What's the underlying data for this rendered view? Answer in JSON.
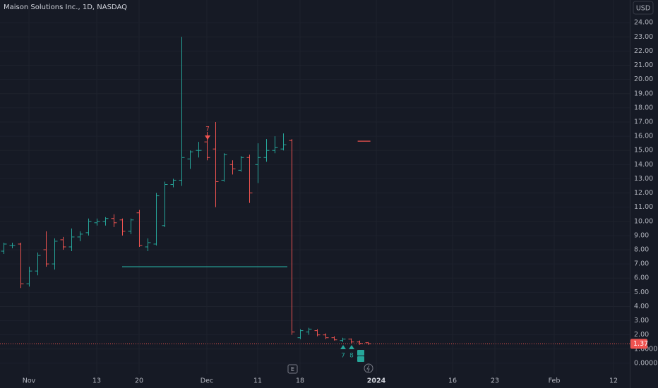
{
  "chart_data": {
    "type": "ohlc",
    "title": "Maison Solutions Inc., 1D, NASDAQ",
    "currency": "USD",
    "up_color": "#26a69a",
    "down_color": "#ef5350",
    "grid": true,
    "categories": [
      null,
      null,
      null,
      "Nov",
      null,
      null,
      null,
      null,
      null,
      null,
      null,
      "13",
      null,
      null,
      null,
      null,
      "20",
      null,
      null,
      null,
      null,
      null,
      null,
      null,
      "Dec",
      null,
      null,
      null,
      null,
      null,
      "11",
      null,
      null,
      null,
      null,
      "18",
      null,
      null,
      null,
      null,
      null,
      null,
      null,
      null,
      "2024",
      null,
      null,
      null,
      null,
      null,
      null,
      null,
      null,
      "16",
      null,
      null,
      null,
      null,
      "23",
      null,
      null,
      null,
      null,
      null,
      null,
      "Feb",
      null,
      null,
      null,
      null,
      null,
      null,
      "12"
    ],
    "open": [
      7.9,
      8.3,
      8.4,
      5.6,
      6.5,
      8.0,
      7.0,
      8.7,
      8.2,
      8.9,
      9.2,
      9.9,
      10.0,
      10.2,
      10.1,
      9.3,
      10.6,
      8.2,
      8.4,
      9.7,
      12.6,
      12.9,
      14.4,
      15.0,
      15.6,
      15.1,
      12.9,
      14.0,
      13.6,
      14.5,
      14.0,
      14.5,
      15.0,
      15.1,
      15.7,
      1.8,
      2.2,
      2.3,
      2.0,
      1.8,
      1.6,
      1.7,
      1.5,
      1.45,
      null,
      null,
      null,
      null,
      null,
      null,
      null,
      null,
      null,
      null,
      null,
      null,
      null,
      null,
      null,
      null,
      null,
      null,
      null,
      null,
      null,
      null,
      null,
      null,
      null,
      null,
      null,
      null,
      null
    ],
    "high": [
      8.5,
      8.5,
      8.5,
      6.8,
      7.8,
      9.3,
      8.8,
      8.9,
      9.5,
      9.3,
      10.2,
      10.2,
      10.3,
      10.5,
      10.2,
      10.2,
      10.8,
      8.8,
      12.0,
      12.8,
      13.0,
      23.0,
      15.0,
      15.6,
      16.3,
      17.0,
      14.8,
      14.3,
      14.6,
      14.7,
      15.5,
      15.8,
      16.0,
      16.2,
      15.8,
      2.4,
      2.5,
      2.4,
      2.1,
      1.9,
      1.8,
      1.75,
      1.6,
      1.5,
      null,
      null,
      null,
      null,
      null,
      null,
      null,
      null,
      null,
      null,
      null,
      null,
      null,
      null,
      null,
      null,
      null,
      null,
      null,
      null,
      null,
      null,
      null,
      null,
      null,
      null,
      null,
      null,
      null
    ],
    "low": [
      7.7,
      8.1,
      5.3,
      5.4,
      6.2,
      6.8,
      6.6,
      8.0,
      7.9,
      8.6,
      9.0,
      9.7,
      9.7,
      9.6,
      9.0,
      9.1,
      8.2,
      7.9,
      8.3,
      9.6,
      12.4,
      12.5,
      13.7,
      14.5,
      14.3,
      11.0,
      12.8,
      13.3,
      13.5,
      11.3,
      12.7,
      14.2,
      14.8,
      15.0,
      2.0,
      1.7,
      2.0,
      1.9,
      1.7,
      1.6,
      1.5,
      1.4,
      1.3,
      1.3,
      null,
      null,
      null,
      null,
      null,
      null,
      null,
      null,
      null,
      null,
      null,
      null,
      null,
      null,
      null,
      null,
      null,
      null,
      null,
      null,
      null,
      null,
      null,
      null,
      null,
      null,
      null,
      null,
      null
    ],
    "close": [
      8.4,
      8.3,
      5.6,
      6.5,
      7.6,
      7.0,
      8.6,
      8.2,
      8.9,
      9.1,
      10.0,
      10.0,
      10.2,
      9.9,
      9.3,
      10.1,
      8.3,
      8.5,
      11.8,
      12.6,
      12.9,
      14.5,
      14.9,
      15.0,
      14.5,
      12.8,
      14.7,
      13.7,
      14.5,
      12.0,
      14.5,
      15.0,
      15.2,
      15.4,
      2.2,
      2.3,
      2.4,
      2.0,
      1.8,
      1.65,
      1.7,
      1.5,
      1.4,
      1.37,
      null,
      null,
      null,
      null,
      null,
      null,
      null,
      null,
      null,
      null,
      null,
      null,
      null,
      null,
      null,
      null,
      null,
      null,
      null,
      null,
      null,
      null,
      null,
      null,
      null,
      null,
      null,
      null,
      null
    ],
    "last_price": 1.37,
    "horizontal_lines": [
      {
        "value": 6.8,
        "color": "#26a69a"
      },
      {
        "value": 15.65,
        "color": "#ef5350"
      }
    ],
    "markers": [
      {
        "label": "7",
        "color": "#ef5350"
      },
      {
        "label": "7",
        "color": "#26a69a"
      },
      {
        "label": "8",
        "color": "#26a69a"
      }
    ],
    "ylim": [
      -0.75,
      25.6
    ],
    "yticks": [
      {
        "value": 0,
        "label": "0.0000"
      },
      {
        "value": 1,
        "label": "1.0000"
      },
      {
        "value": 2,
        "label": "2.00"
      },
      {
        "value": 3,
        "label": "3.00"
      },
      {
        "value": 4,
        "label": "4.00"
      },
      {
        "value": 5,
        "label": "5.00"
      },
      {
        "value": 6,
        "label": "6.00"
      },
      {
        "value": 7,
        "label": "7.00"
      },
      {
        "value": 8,
        "label": "8.00"
      },
      {
        "value": 9,
        "label": "9.00"
      },
      {
        "value": 10,
        "label": "10.00"
      },
      {
        "value": 11,
        "label": "11.00"
      },
      {
        "value": 12,
        "label": "12.00"
      },
      {
        "value": 13,
        "label": "13.00"
      },
      {
        "value": 14,
        "label": "14.00"
      },
      {
        "value": 15,
        "label": "15.00"
      },
      {
        "value": 16,
        "label": "16.00"
      },
      {
        "value": 17,
        "label": "17.00"
      },
      {
        "value": 18,
        "label": "18.00"
      },
      {
        "value": 19,
        "label": "19.00"
      },
      {
        "value": 20,
        "label": "20.00"
      },
      {
        "value": 21,
        "label": "21.00"
      },
      {
        "value": 22,
        "label": "22.00"
      },
      {
        "value": 23,
        "label": "23.00"
      },
      {
        "value": 24,
        "label": "24.00"
      }
    ]
  }
}
